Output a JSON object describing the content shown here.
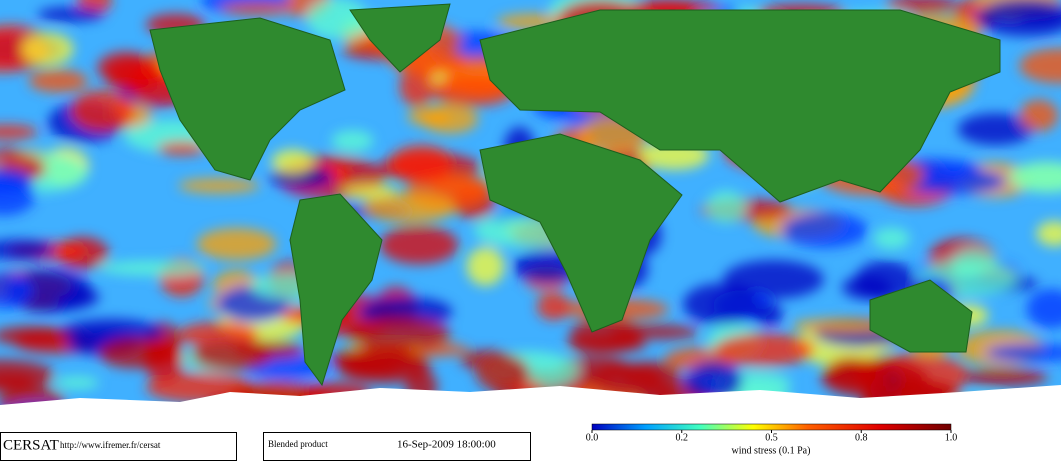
{
  "footer": {
    "brand": "CERSAT",
    "url": "http://www.ifremer.fr/cersat",
    "product": "Blended product",
    "timestamp": "16-Sep-2009 18:00:00"
  },
  "colorbar": {
    "label": "wind stress (0.1 Pa)",
    "ticks": [
      {
        "value": 0,
        "label": "0.0"
      },
      0.2,
      0.5,
      0.8,
      {
        "value": 1,
        "label": "1.0"
      }
    ]
  }
}
